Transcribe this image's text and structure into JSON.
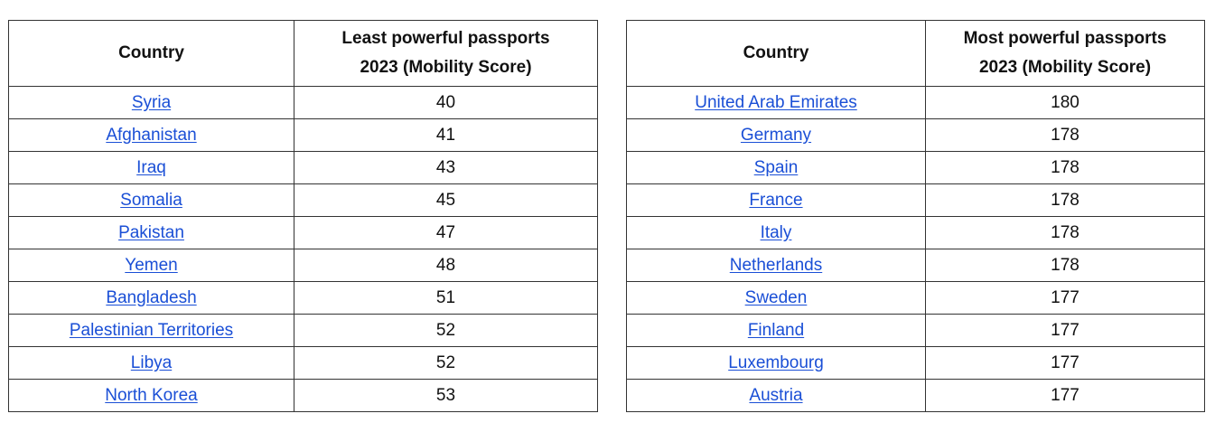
{
  "least_table": {
    "header_country": "Country",
    "header_score_line1": "Least powerful passports",
    "header_score_line2": "2023 (Mobility Score)",
    "rows": [
      {
        "country": "Syria",
        "score": "40"
      },
      {
        "country": "Afghanistan",
        "score": "41"
      },
      {
        "country": "Iraq",
        "score": "43"
      },
      {
        "country": "Somalia",
        "score": "45"
      },
      {
        "country": "Pakistan",
        "score": "47"
      },
      {
        "country": "Yemen",
        "score": "48"
      },
      {
        "country": "Bangladesh",
        "score": "51"
      },
      {
        "country": "Palestinian Territories",
        "score": "52"
      },
      {
        "country": "Libya",
        "score": "52"
      },
      {
        "country": "North Korea",
        "score": "53"
      }
    ]
  },
  "most_table": {
    "header_country": "Country",
    "header_score_line1": "Most powerful passports",
    "header_score_line2": "2023 (Mobility Score)",
    "rows": [
      {
        "country": "United Arab Emirates",
        "score": "180"
      },
      {
        "country": "Germany",
        "score": "178"
      },
      {
        "country": "Spain",
        "score": "178"
      },
      {
        "country": "France",
        "score": "178"
      },
      {
        "country": "Italy",
        "score": "178"
      },
      {
        "country": "Netherlands",
        "score": "178"
      },
      {
        "country": "Sweden",
        "score": "177"
      },
      {
        "country": "Finland",
        "score": "177"
      },
      {
        "country": "Luxembourg",
        "score": "177"
      },
      {
        "country": "Austria",
        "score": "177"
      }
    ]
  },
  "colors": {
    "link": "#1a4fd6",
    "border": "#333333",
    "text": "#111111"
  }
}
